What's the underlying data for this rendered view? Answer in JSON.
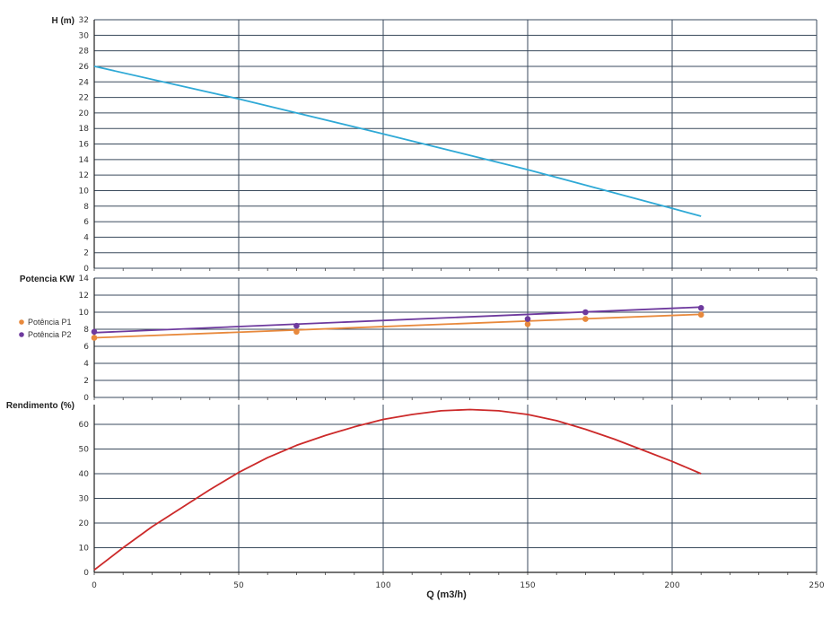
{
  "chart_data": [
    {
      "type": "line",
      "ylabel": "H (m)",
      "xlim": [
        0,
        250
      ],
      "ylim": [
        0,
        32
      ],
      "x_ticks": [
        0,
        50,
        100,
        150,
        200,
        250
      ],
      "y_ticks": [
        0,
        2,
        4,
        6,
        8,
        10,
        12,
        14,
        16,
        18,
        20,
        22,
        24,
        26,
        28,
        30,
        32
      ],
      "grid": true,
      "series": [
        {
          "color": "#2fa9d6",
          "x": [
            0,
            50,
            100,
            150,
            200,
            210
          ],
          "y": [
            26,
            21.8,
            17.3,
            12.7,
            7.7,
            6.7
          ]
        }
      ]
    },
    {
      "type": "line",
      "ylabel": "Potencia KW",
      "xlim": [
        0,
        250
      ],
      "ylim": [
        0,
        14
      ],
      "y_ticks": [
        0,
        2,
        4,
        6,
        8,
        10,
        12,
        14
      ],
      "grid": true,
      "legend_position": "left",
      "series": [
        {
          "name": "Potência P1",
          "color": "#e8893c",
          "line_x": [
            0,
            210
          ],
          "line_y": [
            7.0,
            9.75
          ],
          "points_x": [
            0,
            70,
            150,
            170,
            210
          ],
          "points_y": [
            7.0,
            7.7,
            8.6,
            9.2,
            9.7
          ]
        },
        {
          "name": "Potência P2",
          "color": "#6e3a9e",
          "line_x": [
            0,
            210
          ],
          "line_y": [
            7.6,
            10.6
          ],
          "points_x": [
            0,
            70,
            150,
            170,
            210
          ],
          "points_y": [
            7.7,
            8.4,
            9.2,
            10.0,
            10.5
          ]
        }
      ]
    },
    {
      "type": "line",
      "ylabel": "Rendimento (%)",
      "xlabel": "Q (m3/h)",
      "xlim": [
        0,
        250
      ],
      "ylim": [
        0,
        68
      ],
      "y_ticks": [
        0,
        10,
        20,
        30,
        40,
        50,
        60
      ],
      "grid": true,
      "series": [
        {
          "color": "#cc2a2a",
          "x": [
            0,
            10,
            20,
            30,
            40,
            50,
            60,
            70,
            80,
            90,
            100,
            110,
            120,
            130,
            140,
            150,
            160,
            170,
            180,
            190,
            200,
            210
          ],
          "y": [
            1,
            10,
            18.5,
            26,
            33.5,
            40.5,
            46.5,
            51.5,
            55.5,
            59,
            62,
            64,
            65.5,
            66,
            65.5,
            64,
            61.5,
            58,
            54,
            49.5,
            45,
            40
          ]
        }
      ]
    }
  ]
}
